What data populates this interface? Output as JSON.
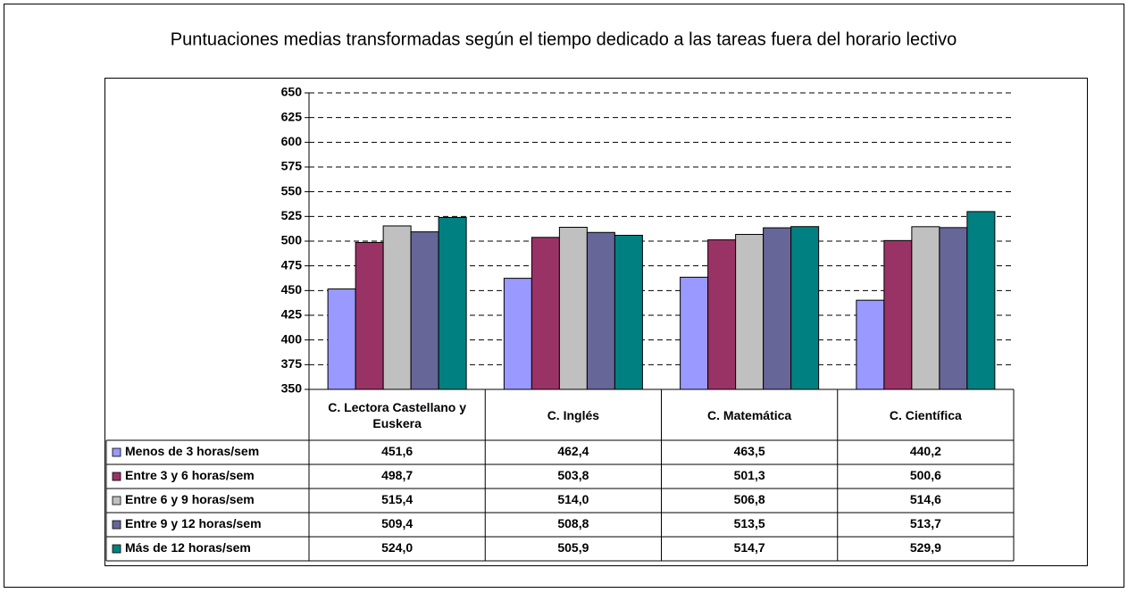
{
  "chart_data": {
    "type": "bar",
    "title": "Puntuaciones medias transformadas según el tiempo dedicado a las tareas fuera del horario lectivo",
    "categories": [
      "C. Lectora Castellano y Euskera",
      "C. Inglés",
      "C. Matemática",
      "C. Científica"
    ],
    "series": [
      {
        "name": "Menos de 3 horas/sem",
        "color": "#9999ff",
        "values": [
          451.6,
          462.4,
          463.5,
          440.2
        ],
        "value_labels": [
          "451,6",
          "462,4",
          "463,5",
          "440,2"
        ]
      },
      {
        "name": "Entre 3 y 6 horas/sem",
        "color": "#993366",
        "values": [
          498.7,
          503.8,
          501.3,
          500.6
        ],
        "value_labels": [
          "498,7",
          "503,8",
          "501,3",
          "500,6"
        ]
      },
      {
        "name": "Entre 6 y 9 horas/sem",
        "color": "#c0c0c0",
        "values": [
          515.4,
          514.0,
          506.8,
          514.6
        ],
        "value_labels": [
          "515,4",
          "514,0",
          "506,8",
          "514,6"
        ]
      },
      {
        "name": "Entre 9 y 12 horas/sem",
        "color": "#666699",
        "values": [
          509.4,
          508.8,
          513.5,
          513.7
        ],
        "value_labels": [
          "509,4",
          "508,8",
          "513,5",
          "513,7"
        ]
      },
      {
        "name": "Más de 12 horas/sem",
        "color": "#008080",
        "values": [
          524.0,
          505.9,
          514.7,
          529.9
        ],
        "value_labels": [
          "524,0",
          "505,9",
          "514,7",
          "529,9"
        ]
      }
    ],
    "ylim": [
      350,
      650
    ],
    "yticks": [
      350,
      375,
      400,
      425,
      450,
      475,
      500,
      525,
      550,
      575,
      600,
      625,
      650
    ],
    "grid": true
  }
}
